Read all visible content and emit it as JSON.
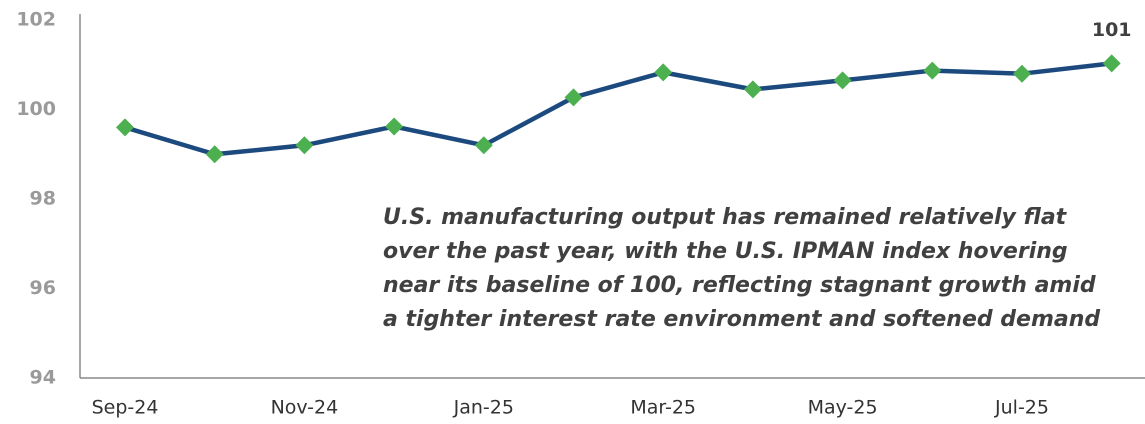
{
  "chart_data": {
    "type": "line",
    "categories": [
      "Sep-24",
      null,
      "Nov-24",
      null,
      "Jan-25",
      null,
      "Mar-25",
      null,
      "May-25",
      null,
      "Jul-25",
      null
    ],
    "series": [
      {
        "name": "U.S. IPMAN index",
        "color": "#1c4a7e",
        "marker_color": "#4caf50",
        "values": [
          99.6,
          99.0,
          99.2,
          99.62,
          99.2,
          100.27,
          100.83,
          100.45,
          100.65,
          100.87,
          100.8,
          101.03
        ],
        "value_labels": [
          null,
          null,
          null,
          null,
          null,
          null,
          null,
          null,
          null,
          null,
          null,
          "101"
        ]
      }
    ],
    "ylim": [
      94,
      102
    ],
    "yticks": [
      94,
      96,
      98,
      100,
      102
    ],
    "grid": false,
    "annotation": [
      "U.S. manufacturing output has remained relatively flat",
      "over the past year, with the U.S. IPMAN index hovering",
      "near its baseline of 100, reflecting stagnant growth amid",
      "a tighter interest rate environment and softened demand"
    ]
  }
}
